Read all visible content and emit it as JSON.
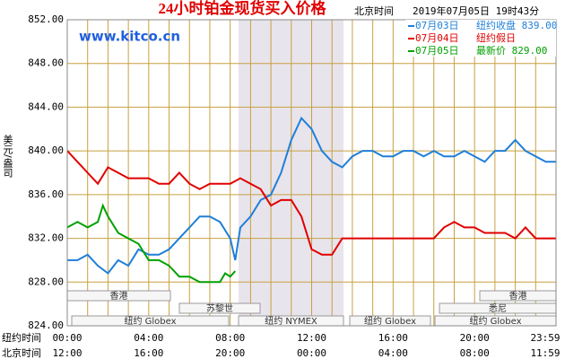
{
  "chart_data": {
    "type": "line",
    "title": "24小时铂金现货买入价格",
    "header_label": "北京时间",
    "timestamp": "2019年07月05日 19时43分",
    "watermark": "www.kitco.cn",
    "ylabel": "美元/盎司",
    "x_row_label": "纽约时间",
    "x2_row_label": "北京时间",
    "xlim": [
      0,
      24
    ],
    "xticks": [
      {
        "value": 0,
        "label": "00:00"
      },
      {
        "value": 4,
        "label": "04:00"
      },
      {
        "value": 8,
        "label": "08:00"
      },
      {
        "value": 12,
        "label": "12:00"
      },
      {
        "value": 16,
        "label": "16:00"
      },
      {
        "value": 20,
        "label": "20:00"
      },
      {
        "value": 24,
        "label": "23:59"
      }
    ],
    "x2ticks": [
      {
        "value": 0,
        "label": "12:00"
      },
      {
        "value": 4,
        "label": "16:00"
      },
      {
        "value": 8,
        "label": "20:00"
      },
      {
        "value": 12,
        "label": "00:00"
      },
      {
        "value": 16,
        "label": "04:00"
      },
      {
        "value": 20,
        "label": "08:00"
      },
      {
        "value": 24,
        "label": "11:59"
      }
    ],
    "x_gridlines": [
      1,
      2,
      3,
      5,
      6,
      7,
      9,
      10,
      11,
      13,
      14,
      15,
      17,
      18,
      19,
      21,
      22,
      23
    ],
    "ylim": [
      824,
      852
    ],
    "yticks": [
      {
        "value": 824,
        "label": "824.00"
      },
      {
        "value": 828,
        "label": "828.00"
      },
      {
        "value": 832,
        "label": "832.00"
      },
      {
        "value": 836,
        "label": "836.00"
      },
      {
        "value": 840,
        "label": "840.00"
      },
      {
        "value": 844,
        "label": "844.00"
      },
      {
        "value": 848,
        "label": "848.00"
      },
      {
        "value": 852,
        "label": "852.00"
      }
    ],
    "grid": true,
    "grid_color": "#c8a040",
    "sessions": [
      "香港",
      "香港",
      "苏黎世",
      "悉尼",
      "纽约 Globex",
      "纽约 NYMEX",
      "纽约 Globex",
      "纽约 Globex"
    ],
    "series": [
      {
        "name": "07月03日",
        "legend_text": "纽约收盘 839.00",
        "color": "#1e7fd8",
        "x": [
          0,
          0.5,
          1,
          1.5,
          2,
          2.5,
          3,
          3.5,
          4,
          4.5,
          5,
          5.5,
          6,
          6.5,
          7,
          7.5,
          8,
          8.25,
          8.5,
          9,
          9.5,
          10,
          10.5,
          11,
          11.5,
          12,
          12.5,
          13,
          13.5,
          14,
          14.5,
          15,
          15.5,
          16,
          16.5,
          17,
          17.5,
          18,
          18.5,
          19,
          19.5,
          20,
          20.5,
          21,
          21.5,
          22,
          22.5,
          23,
          23.5,
          24
        ],
        "values": [
          830,
          830,
          830.5,
          829.5,
          828.8,
          830,
          829.5,
          831,
          830.5,
          830.5,
          831,
          832,
          833,
          834,
          834,
          833.5,
          832,
          830,
          833,
          834,
          835.5,
          836,
          838,
          841,
          843,
          842,
          840,
          839,
          838.5,
          839.5,
          840,
          840,
          839.5,
          839.5,
          840,
          840,
          839.5,
          840,
          839.5,
          839.5,
          840,
          839.5,
          839,
          840,
          840,
          841,
          840,
          839.5,
          839,
          839
        ]
      },
      {
        "name": "07月04日",
        "legend_text": "纽约假日",
        "color": "#e00000",
        "x": [
          0,
          0.5,
          1,
          1.5,
          2,
          2.5,
          3,
          3.5,
          4,
          4.5,
          5,
          5.5,
          6,
          6.5,
          7,
          7.5,
          8,
          8.5,
          9,
          9.5,
          10,
          10.5,
          11,
          11.5,
          12,
          12.5,
          13,
          13.5,
          14,
          18,
          18.5,
          19,
          19.5,
          20,
          20.5,
          21,
          21.5,
          22,
          22.5,
          23,
          24
        ],
        "values": [
          840,
          839,
          838,
          837,
          838.5,
          838,
          837.5,
          837.5,
          837.5,
          837,
          837,
          838,
          837,
          836.5,
          837,
          837,
          837,
          837.5,
          837,
          836.5,
          835,
          835.5,
          835.5,
          834,
          831,
          830.5,
          830.5,
          832,
          832,
          832,
          833,
          833.5,
          833,
          833,
          832.5,
          832.5,
          832.5,
          832,
          833,
          832,
          832
        ]
      },
      {
        "name": "07月05日",
        "legend_text": "最新价 829.00",
        "color": "#00a000",
        "x": [
          0,
          0.5,
          1,
          1.5,
          1.75,
          2,
          2.5,
          3,
          3.5,
          4,
          4.5,
          5,
          5.5,
          6,
          6.5,
          7,
          7.5,
          7.75,
          8,
          8.25
        ],
        "values": [
          833,
          833.5,
          833,
          833.5,
          835,
          834,
          832.5,
          832,
          831.5,
          830,
          830,
          829.5,
          828.5,
          828.5,
          828,
          828,
          828,
          828.8,
          828.5,
          829
        ]
      }
    ]
  }
}
